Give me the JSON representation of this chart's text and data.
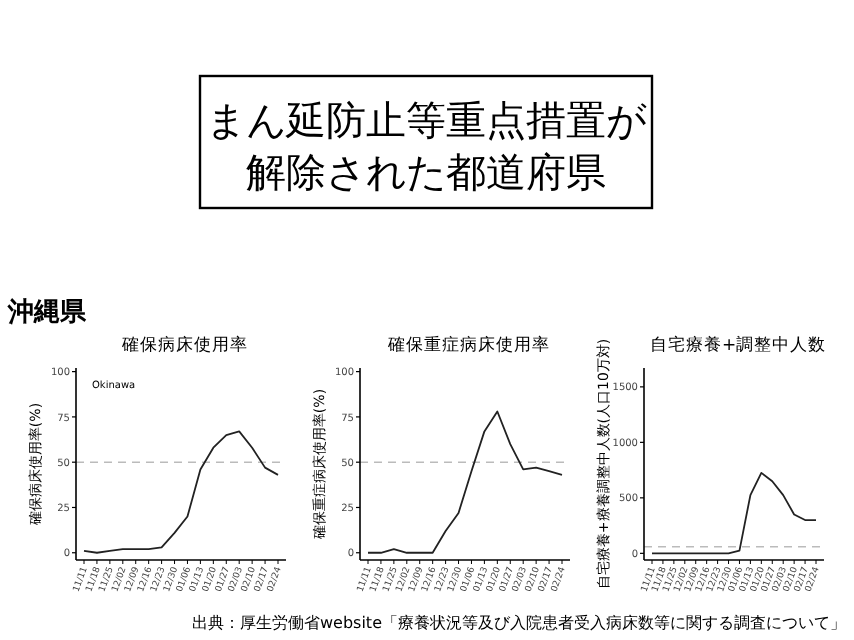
{
  "chart_data": [
    {
      "type": "line",
      "title": "確保病床使用率",
      "ylabel": "確保病床使用率(%)",
      "annotations": [
        "まん延防止等重点措置が",
        "解除された都道府県",
        "沖縄県",
        "Okinawa"
      ],
      "categories": [
        "11/11",
        "11/18",
        "11/25",
        "12/02",
        "12/09",
        "12/16",
        "12/23",
        "12/30",
        "01/06",
        "01/13",
        "01/20",
        "01/27",
        "02/03",
        "02/10",
        "02/17",
        "02/24"
      ],
      "series": [
        {
          "color": "#222222",
          "values": [
            1,
            0,
            1,
            2,
            2,
            2,
            3,
            11,
            20,
            46,
            58,
            65,
            67,
            58,
            47,
            43
          ]
        }
      ],
      "ylim": [
        -4,
        102
      ],
      "yticks": [
        0,
        25,
        50,
        75,
        100
      ],
      "ref_lines": [
        {
          "axis": "y",
          "value": 50,
          "color": "#bbbbbb",
          "line_style": "dashed"
        }
      ]
    },
    {
      "type": "line",
      "title": "確保重症病床使用率",
      "ylabel": "確保重症病床使用率(%)",
      "categories": [
        "11/11",
        "11/18",
        "11/25",
        "12/02",
        "12/09",
        "12/16",
        "12/23",
        "12/30",
        "01/06",
        "01/13",
        "01/20",
        "01/27",
        "02/03",
        "02/10",
        "02/17",
        "02/24"
      ],
      "series": [
        {
          "color": "#222222",
          "values": [
            0,
            0,
            2,
            0,
            0,
            0,
            12,
            22,
            45,
            67,
            78,
            60,
            46,
            47,
            45,
            43
          ]
        }
      ],
      "ylim": [
        -4,
        102
      ],
      "yticks": [
        0,
        25,
        50,
        75,
        100
      ],
      "ref_lines": [
        {
          "axis": "y",
          "value": 50,
          "color": "#bbbbbb",
          "line_style": "dashed"
        }
      ]
    },
    {
      "type": "line",
      "title": "自宅療養+調整中人数",
      "ylabel": "自宅療養+療養調整中人数(人口10万対)",
      "annotations": [
        "出典：厚生労働省website「療養状況等及び入院患者受入病床数等に関する調査について」"
      ],
      "categories": [
        "11/11",
        "11/18",
        "11/25",
        "12/02",
        "12/09",
        "12/16",
        "12/23",
        "12/30",
        "01/06",
        "01/13",
        "01/20",
        "01/27",
        "02/03",
        "02/10",
        "02/17",
        "02/24"
      ],
      "series": [
        {
          "color": "#222222",
          "values": [
            0,
            0,
            0,
            0,
            0,
            0,
            0,
            0,
            25,
            525,
            725,
            650,
            525,
            350,
            300,
            300
          ]
        }
      ],
      "ylim": [
        -60,
        1670
      ],
      "yticks": [
        0,
        500,
        1000,
        1500
      ],
      "ref_lines": [
        {
          "axis": "y",
          "value": 60,
          "color": "#bbbbbb",
          "line_style": "dashed"
        }
      ]
    }
  ]
}
